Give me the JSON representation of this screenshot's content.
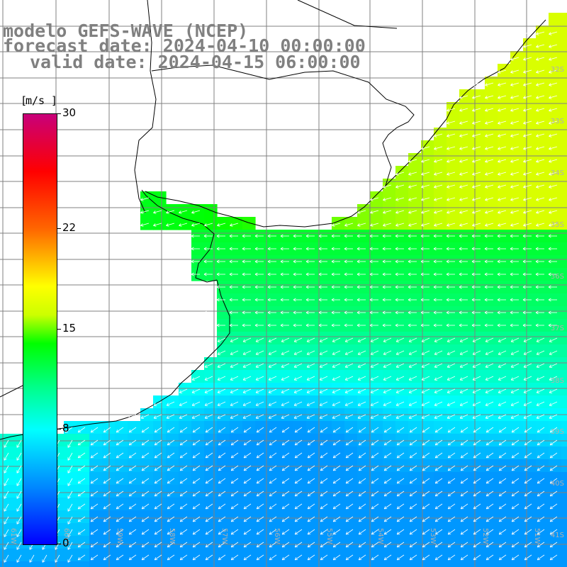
{
  "titles": {
    "model": "modelo GEFS-WAVE (NCEP)",
    "forecast": "forecast date: 2024-04-10 00:00:00",
    "valid": "valid date: 2024-04-15 06:00:00"
  },
  "colorbar": {
    "unit": "m/s",
    "min": 0,
    "max": 30,
    "ticks": [
      {
        "label": "30",
        "value": 30
      },
      {
        "label": "22",
        "value": 22
      },
      {
        "label": "15",
        "value": 15
      },
      {
        "label": "8",
        "value": 8
      },
      {
        "label": "0",
        "value": 0
      }
    ],
    "stops": [
      {
        "value": 0,
        "color": "#0000ff"
      },
      {
        "value": 4,
        "color": "#0088ff"
      },
      {
        "value": 8,
        "color": "#00ffff"
      },
      {
        "value": 11,
        "color": "#00ff88"
      },
      {
        "value": 14,
        "color": "#00ff00"
      },
      {
        "value": 16,
        "color": "#ccff00"
      },
      {
        "value": 18,
        "color": "#ffff00"
      },
      {
        "value": 22,
        "color": "#ff6600"
      },
      {
        "value": 26,
        "color": "#ff0000"
      },
      {
        "value": 30,
        "color": "#c8007a"
      }
    ]
  },
  "lat_labels": [
    "32S",
    "33S",
    "34S",
    "35S",
    "36S",
    "37S",
    "38S",
    "39S",
    "40S",
    "41S"
  ],
  "lon_labels": [
    "61W",
    "60W",
    "59W",
    "58W",
    "57W",
    "56W",
    "55W",
    "54W",
    "53W",
    "52W",
    "51W"
  ],
  "colors": {
    "title": "#808080",
    "land": "#ffffff",
    "grid": "#808080",
    "coast": "#000000",
    "arrows": "#ffffff",
    "axis_labels": "#b0b0b0"
  }
}
